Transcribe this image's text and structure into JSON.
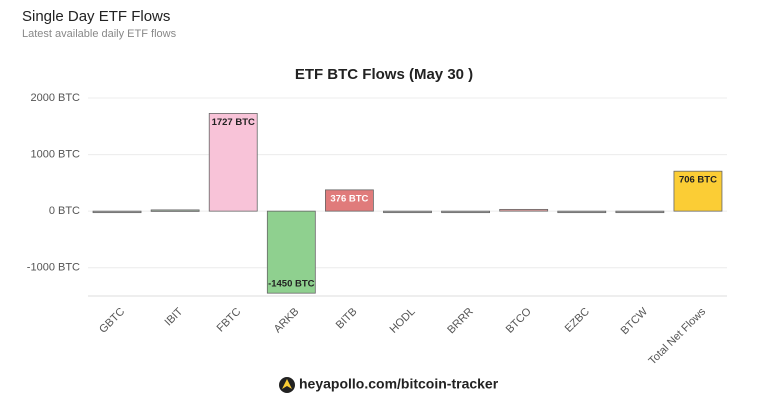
{
  "header": {
    "title": "Single Day ETF Flows",
    "subtitle": "Latest available daily ETF flows"
  },
  "chart_data": {
    "type": "bar",
    "title": "ETF BTC Flows (May 30 )",
    "categories": [
      "GBTC",
      "IBIT",
      "FBTC",
      "ARKB",
      "BITB",
      "HODL",
      "BRRR",
      "BTCO",
      "EZBC",
      "BTCW",
      "Total Net Flows"
    ],
    "values": [
      0,
      22,
      1727,
      -1450,
      376,
      0,
      0,
      31,
      0,
      0,
      706
    ],
    "value_labels": [
      null,
      null,
      "1727 BTC",
      "-1450 BTC",
      "376 BTC",
      null,
      null,
      null,
      null,
      null,
      "706 BTC"
    ],
    "colors": [
      "#b0b0b0",
      "#9aa89a",
      "#f8c3d8",
      "#8fd08f",
      "#e07b7b",
      "#b0b0b0",
      "#b0b0b0",
      "#e0a0a0",
      "#b0b0b0",
      "#b0b0b0",
      "#fbcd35"
    ],
    "label_colors": [
      null,
      null,
      "#222222",
      "#222222",
      "#ffffff",
      null,
      null,
      null,
      null,
      null,
      "#222222"
    ],
    "ylim": [
      -1500,
      2000
    ],
    "yticks": [
      {
        "value": 2000,
        "label": "2000 BTC"
      },
      {
        "value": 1000,
        "label": "1000 BTC"
      },
      {
        "value": 0,
        "label": "0 BTC"
      },
      {
        "value": -1000,
        "label": "-1000 BTC"
      }
    ],
    "grid": true
  },
  "footer": {
    "link": "heyapollo.com/bitcoin-tracker"
  }
}
